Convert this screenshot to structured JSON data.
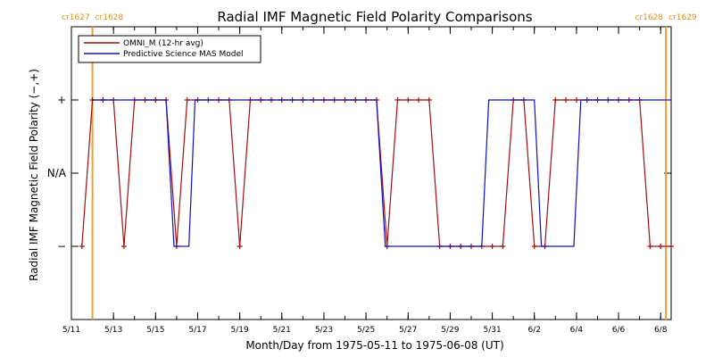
{
  "chart_data": {
    "type": "line",
    "title": "Radial IMF Magnetic Field Polarity Comparisons",
    "xlabel": "Month/Day from 1975-05-11 to 1975-06-08 (UT)",
    "ylabel": "Radial IMF Magnetic Field Polarity (−,+)",
    "x_unit": "date (UT)",
    "xlim": [
      "1975-05-11T00:00",
      "1975-06-08T12:00"
    ],
    "ylim": [
      -2,
      2
    ],
    "x_ticks": [
      {
        "date": "1975-05-11",
        "label": "5/11"
      },
      {
        "date": "1975-05-13",
        "label": "5/13"
      },
      {
        "date": "1975-05-15",
        "label": "5/15"
      },
      {
        "date": "1975-05-17",
        "label": "5/17"
      },
      {
        "date": "1975-05-19",
        "label": "5/19"
      },
      {
        "date": "1975-05-21",
        "label": "5/21"
      },
      {
        "date": "1975-05-23",
        "label": "5/23"
      },
      {
        "date": "1975-05-25",
        "label": "5/25"
      },
      {
        "date": "1975-05-27",
        "label": "5/27"
      },
      {
        "date": "1975-05-29",
        "label": "5/29"
      },
      {
        "date": "1975-05-31",
        "label": "5/31"
      },
      {
        "date": "1975-06-02",
        "label": "6/2"
      },
      {
        "date": "1975-06-04",
        "label": "6/4"
      },
      {
        "date": "1975-06-06",
        "label": "6/6"
      },
      {
        "date": "1975-06-08",
        "label": "6/8"
      }
    ],
    "y_ticks": [
      {
        "value": 1,
        "label": "+"
      },
      {
        "value": 0,
        "label": "N/A"
      },
      {
        "value": -1,
        "label": "−"
      }
    ],
    "legend_position": "top-left",
    "carrington_markers": [
      {
        "date": "1975-05-12T00:00",
        "left_label": "cr1627",
        "right_label": "cr1628"
      },
      {
        "date": "1975-06-08T06:00",
        "left_label": "cr1628",
        "right_label": "cr1629"
      }
    ],
    "series": [
      {
        "name": "OMNI_M (12-hr avg)",
        "color": "#a01010",
        "marker": "plus",
        "points": [
          [
            "1975-05-11T12:00",
            -1
          ],
          [
            "1975-05-12T00:00",
            1
          ],
          [
            "1975-05-12T12:00",
            1
          ],
          [
            "1975-05-13T00:00",
            1
          ],
          [
            "1975-05-13T12:00",
            -1
          ],
          [
            "1975-05-14T00:00",
            1
          ],
          [
            "1975-05-14T12:00",
            1
          ],
          [
            "1975-05-15T00:00",
            1
          ],
          [
            "1975-05-15T12:00",
            1
          ],
          [
            "1975-05-16T00:00",
            -1
          ],
          [
            "1975-05-16T12:00",
            1
          ],
          [
            "1975-05-17T00:00",
            1
          ],
          [
            "1975-05-17T12:00",
            1
          ],
          [
            "1975-05-18T00:00",
            1
          ],
          [
            "1975-05-18T12:00",
            1
          ],
          [
            "1975-05-19T00:00",
            -1
          ],
          [
            "1975-05-19T12:00",
            1
          ],
          [
            "1975-05-20T00:00",
            1
          ],
          [
            "1975-05-20T12:00",
            1
          ],
          [
            "1975-05-21T00:00",
            1
          ],
          [
            "1975-05-21T12:00",
            1
          ],
          [
            "1975-05-22T00:00",
            1
          ],
          [
            "1975-05-22T12:00",
            1
          ],
          [
            "1975-05-23T00:00",
            1
          ],
          [
            "1975-05-23T12:00",
            1
          ],
          [
            "1975-05-24T00:00",
            1
          ],
          [
            "1975-05-24T12:00",
            1
          ],
          [
            "1975-05-25T00:00",
            1
          ],
          [
            "1975-05-25T12:00",
            1
          ],
          [
            "1975-05-26T00:00",
            -1
          ],
          [
            "1975-05-26T12:00",
            1
          ],
          [
            "1975-05-27T00:00",
            1
          ],
          [
            "1975-05-27T12:00",
            1
          ],
          [
            "1975-05-28T00:00",
            1
          ],
          [
            "1975-05-28T12:00",
            -1
          ],
          [
            "1975-05-29T00:00",
            -1
          ],
          [
            "1975-05-29T12:00",
            -1
          ],
          [
            "1975-05-30T00:00",
            -1
          ],
          [
            "1975-05-30T12:00",
            -1
          ],
          [
            "1975-05-31T00:00",
            -1
          ],
          [
            "1975-05-31T12:00",
            -1
          ],
          [
            "1975-06-01T00:00",
            1
          ],
          [
            "1975-06-01T12:00",
            1
          ],
          [
            "1975-06-02T00:00",
            -1
          ],
          [
            "1975-06-02T12:00",
            -1
          ],
          [
            "1975-06-03T00:00",
            1
          ],
          [
            "1975-06-03T12:00",
            1
          ],
          [
            "1975-06-04T00:00",
            1
          ],
          [
            "1975-06-04T12:00",
            1
          ],
          [
            "1975-06-05T00:00",
            1
          ],
          [
            "1975-06-05T12:00",
            1
          ],
          [
            "1975-06-06T00:00",
            1
          ],
          [
            "1975-06-06T12:00",
            1
          ],
          [
            "1975-06-07T00:00",
            1
          ],
          [
            "1975-06-07T12:00",
            -1
          ],
          [
            "1975-06-08T00:00",
            -1
          ],
          [
            "1975-06-08T12:00",
            -1
          ]
        ]
      },
      {
        "name": "Predictive Science MAS Model",
        "color": "#1010c0",
        "marker": "none",
        "points": [
          [
            "1975-05-12T00:00",
            1
          ],
          [
            "1975-05-15T12:00",
            1
          ],
          [
            "1975-05-15T21:00",
            -1
          ],
          [
            "1975-05-16T14:00",
            -1
          ],
          [
            "1975-05-16T21:00",
            1
          ],
          [
            "1975-05-25T12:00",
            1
          ],
          [
            "1975-05-25T22:00",
            -1
          ],
          [
            "1975-05-30T12:00",
            -1
          ],
          [
            "1975-05-30T20:00",
            1
          ],
          [
            "1975-06-02T00:00",
            1
          ],
          [
            "1975-06-02T08:00",
            -1
          ],
          [
            "1975-06-03T21:00",
            -1
          ],
          [
            "1975-06-04T05:00",
            1
          ],
          [
            "1975-06-08T12:00",
            1
          ]
        ]
      }
    ]
  },
  "colors": {
    "carrington_line": "#f0a030",
    "carrington_label": "#e09020",
    "axis": "#000000"
  }
}
